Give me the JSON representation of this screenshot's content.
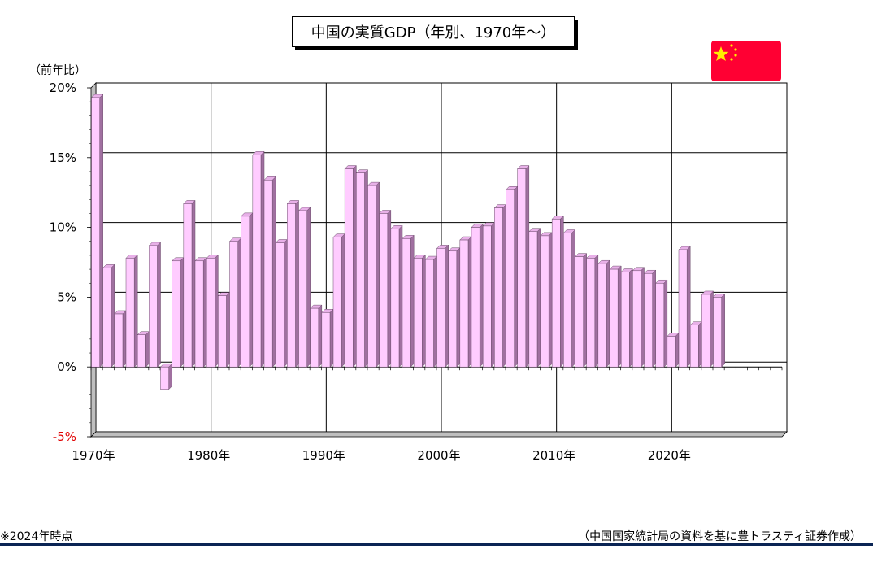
{
  "chart_data": {
    "type": "bar",
    "title": "中国の実質GDP（年別、1970年～）",
    "ylabel": "（前年比）",
    "xlabel": "",
    "x_start": 1970,
    "x_end": 2029,
    "ylim": [
      -5,
      20
    ],
    "yticks": [
      "20%",
      "15%",
      "10%",
      "5%",
      "0%",
      "-5%"
    ],
    "xticks": [
      "1970年",
      "1980年",
      "1990年",
      "2000年",
      "2010年",
      "2020年"
    ],
    "years": [
      1970,
      1971,
      1972,
      1973,
      1974,
      1975,
      1976,
      1977,
      1978,
      1979,
      1980,
      1981,
      1982,
      1983,
      1984,
      1985,
      1986,
      1987,
      1988,
      1989,
      1990,
      1991,
      1992,
      1993,
      1994,
      1995,
      1996,
      1997,
      1998,
      1999,
      2000,
      2001,
      2002,
      2003,
      2004,
      2005,
      2006,
      2007,
      2008,
      2009,
      2010,
      2011,
      2012,
      2013,
      2014,
      2015,
      2016,
      2017,
      2018,
      2019,
      2020,
      2021,
      2022,
      2023,
      2024
    ],
    "values": [
      19.3,
      7.1,
      3.8,
      7.8,
      2.3,
      8.7,
      -1.6,
      7.6,
      11.7,
      7.6,
      7.8,
      5.1,
      9.0,
      10.8,
      15.2,
      13.4,
      8.9,
      11.7,
      11.2,
      4.2,
      3.9,
      9.3,
      14.2,
      13.9,
      13.0,
      11.0,
      9.9,
      9.2,
      7.8,
      7.7,
      8.5,
      8.3,
      9.1,
      10.0,
      10.1,
      11.4,
      12.7,
      14.2,
      9.7,
      9.4,
      10.6,
      9.6,
      7.9,
      7.8,
      7.4,
      7.0,
      6.8,
      6.9,
      6.7,
      6.0,
      2.2,
      8.4,
      3.0,
      5.2,
      5.0
    ],
    "grid": true,
    "bar_color": "#ffccff"
  },
  "notes": {
    "left": "※2024年時点",
    "right": "（中国国家統計局の資料を基に豊トラスティ証券作成）"
  },
  "flag": {
    "name": "china-flag-icon",
    "red": "#ff0033",
    "star": "#ffee00"
  }
}
